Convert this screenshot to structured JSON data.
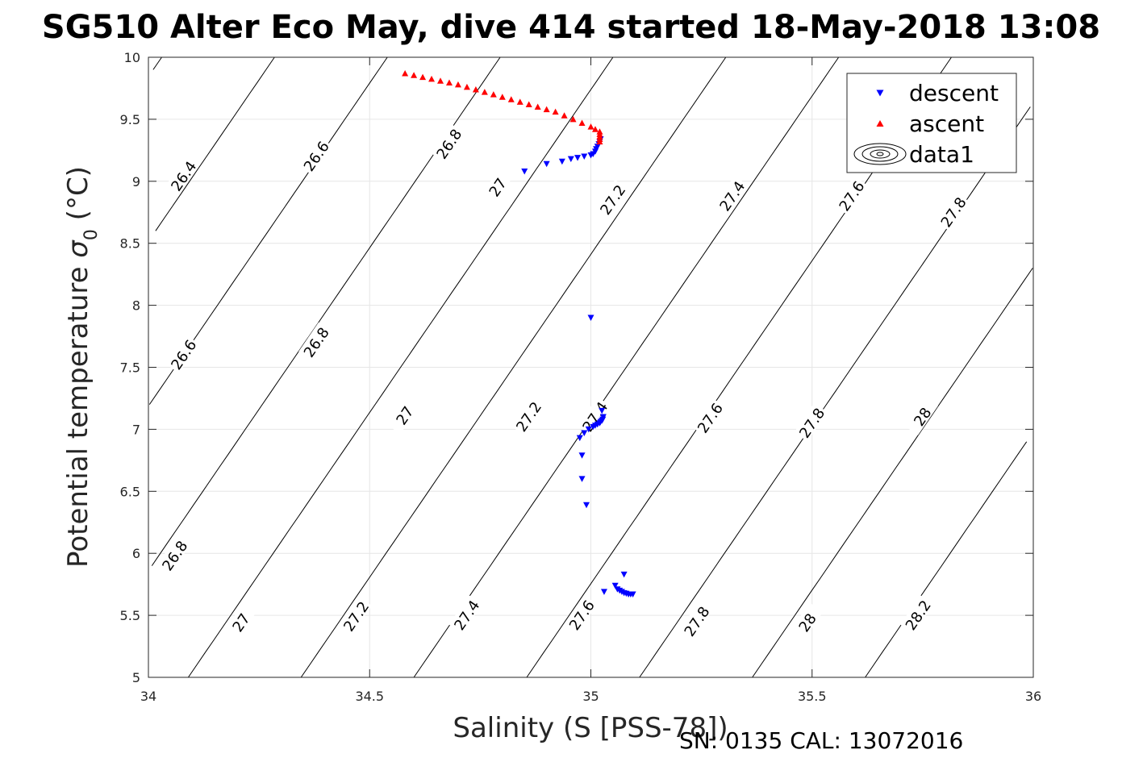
{
  "chart_data": {
    "type": "scatter",
    "title": "SG510 Alter Eco May, dive 414 started 18-May-2018 13:08",
    "xlabel": "Salinity (S [PSS-78])",
    "ylabel": "Potential temperature σ_0 (°C)",
    "ylabel_main": "Potential temperature ",
    "ylabel_sigma": "σ",
    "ylabel_sub": "0",
    "ylabel_unit": " (°C)",
    "footer": "SN: 0135  CAL: 13072016",
    "xlim": [
      34,
      36
    ],
    "ylim": [
      5,
      10
    ],
    "xticks": [
      34,
      34.5,
      35,
      35.5,
      36
    ],
    "yticks": [
      5,
      5.5,
      6,
      6.5,
      7,
      7.5,
      8,
      8.5,
      9,
      9.5,
      10
    ],
    "xtick_labels": [
      "34",
      "34.5",
      "35",
      "35.5",
      "36"
    ],
    "ytick_labels": [
      "5",
      "5.5",
      "6",
      "6.5",
      "7",
      "7.5",
      "8",
      "8.5",
      "9",
      "9.5",
      "10"
    ],
    "grid": true,
    "legend": {
      "position": "top-right",
      "entries": [
        {
          "name": "descent",
          "marker": "triangle-down",
          "color": "#0000ff"
        },
        {
          "name": "ascent",
          "marker": "triangle-up",
          "color": "#ff0000"
        },
        {
          "name": "data1",
          "marker": "contour",
          "color": "#000000"
        }
      ]
    },
    "series": [
      {
        "name": "descent",
        "color": "#0000ff",
        "marker": "triangle-down",
        "points": [
          [
            34.85,
            9.08
          ],
          [
            34.9,
            9.14
          ],
          [
            34.935,
            9.16
          ],
          [
            34.955,
            9.18
          ],
          [
            34.97,
            9.19
          ],
          [
            34.985,
            9.2
          ],
          [
            35.0,
            9.21
          ],
          [
            35.005,
            9.22
          ],
          [
            35.01,
            9.24
          ],
          [
            35.012,
            9.26
          ],
          [
            35.015,
            9.28
          ],
          [
            35.018,
            9.3
          ],
          [
            35.02,
            9.32
          ],
          [
            35.022,
            9.34
          ],
          [
            35.0,
            7.9
          ],
          [
            34.975,
            6.93
          ],
          [
            34.985,
            6.97
          ],
          [
            34.995,
            7.0
          ],
          [
            35.005,
            7.02
          ],
          [
            35.01,
            7.03
          ],
          [
            35.015,
            7.04
          ],
          [
            35.02,
            7.05
          ],
          [
            35.022,
            7.06
          ],
          [
            35.025,
            7.07
          ],
          [
            35.027,
            7.08
          ],
          [
            35.028,
            7.1
          ],
          [
            35.025,
            7.15
          ],
          [
            34.98,
            6.79
          ],
          [
            34.98,
            6.6
          ],
          [
            34.99,
            6.39
          ],
          [
            35.03,
            5.69
          ],
          [
            35.055,
            5.74
          ],
          [
            35.06,
            5.71
          ],
          [
            35.065,
            5.7
          ],
          [
            35.07,
            5.69
          ],
          [
            35.075,
            5.68
          ],
          [
            35.08,
            5.675
          ],
          [
            35.085,
            5.67
          ],
          [
            35.09,
            5.67
          ],
          [
            35.095,
            5.67
          ],
          [
            35.075,
            5.83
          ]
        ]
      },
      {
        "name": "ascent",
        "color": "#ff0000",
        "marker": "triangle-up",
        "points": [
          [
            34.58,
            9.87
          ],
          [
            34.6,
            9.855
          ],
          [
            34.62,
            9.84
          ],
          [
            34.64,
            9.825
          ],
          [
            34.66,
            9.81
          ],
          [
            34.68,
            9.795
          ],
          [
            34.7,
            9.78
          ],
          [
            34.72,
            9.76
          ],
          [
            34.74,
            9.74
          ],
          [
            34.76,
            9.72
          ],
          [
            34.78,
            9.7
          ],
          [
            34.8,
            9.68
          ],
          [
            34.82,
            9.66
          ],
          [
            34.84,
            9.64
          ],
          [
            34.86,
            9.62
          ],
          [
            34.88,
            9.6
          ],
          [
            34.9,
            9.58
          ],
          [
            34.92,
            9.56
          ],
          [
            34.94,
            9.53
          ],
          [
            34.96,
            9.5
          ],
          [
            34.98,
            9.47
          ],
          [
            35.0,
            9.44
          ],
          [
            35.01,
            9.42
          ],
          [
            35.02,
            9.4
          ],
          [
            35.02,
            9.38
          ],
          [
            35.02,
            9.36
          ],
          [
            35.02,
            9.34
          ],
          [
            35.02,
            9.32
          ]
        ]
      }
    ],
    "contours": [
      {
        "level": "26.4",
        "line": [
          [
            34.0,
            9.82
          ],
          [
            34.06,
            10.0
          ]
        ],
        "label_at": [
          34.08,
          9.04
        ]
      },
      {
        "level": "26.6",
        "line": [
          [
            34.0,
            8.56
          ],
          [
            34.28,
            10.0
          ]
        ],
        "label_at": [
          34.38,
          9.2
        ]
      },
      {
        "level": "26.8",
        "line": [
          [
            34.0,
            7.23
          ],
          [
            34.52,
            10.0
          ]
        ],
        "label_at": [
          34.68,
          9.3
        ]
      },
      {
        "level": "27",
        "line": [
          [
            34.0,
            5.76
          ],
          [
            34.77,
            10.0
          ]
        ],
        "label_at": [
          34.79,
          8.95
        ]
      },
      {
        "level": "27.2",
        "line": [
          [
            34.09,
            5.0
          ],
          [
            35.05,
            10.0
          ]
        ],
        "label_at": [
          35.05,
          8.85
        ]
      },
      {
        "level": "27.4",
        "line": [
          [
            34.35,
            5.0
          ],
          [
            35.32,
            10.0
          ]
        ],
        "label_at": [
          35.32,
          8.88
        ]
      },
      {
        "level": "27.6",
        "line": [
          [
            34.62,
            5.0
          ],
          [
            35.59,
            10.0
          ]
        ],
        "label_at": [
          35.59,
          8.88
        ]
      },
      {
        "level": "27.8",
        "line": [
          [
            34.89,
            5.0
          ],
          [
            35.86,
            10.0
          ]
        ],
        "label_at": [
          35.82,
          8.75
        ]
      }
    ],
    "contour_labels": [
      {
        "text": "26.4",
        "at": [
          34.08,
          9.04
        ]
      },
      {
        "text": "26.6",
        "at": [
          34.38,
          9.2
        ]
      },
      {
        "text": "26.8",
        "at": [
          34.68,
          9.3
        ]
      },
      {
        "text": "27",
        "at": [
          34.79,
          8.95
        ]
      },
      {
        "text": "27.2",
        "at": [
          35.05,
          8.85
        ]
      },
      {
        "text": "27.4",
        "at": [
          35.32,
          8.88
        ]
      },
      {
        "text": "27.6",
        "at": [
          35.59,
          8.88
        ]
      },
      {
        "text": "27.8",
        "at": [
          35.82,
          8.75
        ]
      },
      {
        "text": "26.6",
        "at": [
          34.08,
          7.6
        ]
      },
      {
        "text": "26.8",
        "at": [
          34.38,
          7.7
        ]
      },
      {
        "text": "27",
        "at": [
          34.58,
          7.11
        ]
      },
      {
        "text": "27.2",
        "at": [
          34.86,
          7.1
        ]
      },
      {
        "text": "27.4",
        "at": [
          35.01,
          7.1
        ]
      },
      {
        "text": "27.6",
        "at": [
          35.27,
          7.09
        ]
      },
      {
        "text": "27.8",
        "at": [
          35.5,
          7.05
        ]
      },
      {
        "text": "28",
        "at": [
          35.75,
          7.1
        ]
      },
      {
        "text": "26.8",
        "at": [
          34.06,
          5.98
        ]
      },
      {
        "text": "27",
        "at": [
          34.21,
          5.44
        ]
      },
      {
        "text": "27.2",
        "at": [
          34.47,
          5.49
        ]
      },
      {
        "text": "27.4",
        "at": [
          34.72,
          5.5
        ]
      },
      {
        "text": "27.6",
        "at": [
          34.98,
          5.5
        ]
      },
      {
        "text": "27.8",
        "at": [
          35.24,
          5.45
        ]
      },
      {
        "text": "28",
        "at": [
          35.49,
          5.44
        ]
      },
      {
        "text": "28.2",
        "at": [
          35.74,
          5.5
        ]
      }
    ]
  }
}
